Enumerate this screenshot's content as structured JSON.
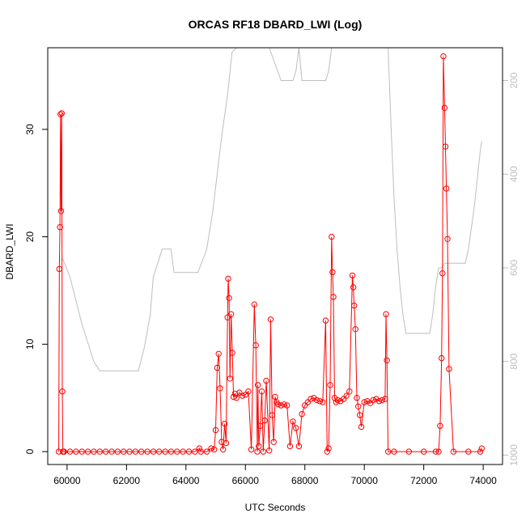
{
  "chart_data": {
    "type": "line",
    "title": "ORCAS RF18 DBARD_LWI (Log)",
    "xlabel": "UTC Seconds",
    "ylabel": "DBARD_LWI",
    "xlim": [
      59350,
      74650
    ],
    "ylim": [
      -1.2,
      37.6
    ],
    "x_ticks": [
      60000,
      62000,
      64000,
      66000,
      68000,
      70000,
      72000,
      74000
    ],
    "y_ticks": [
      0,
      10,
      20,
      30
    ],
    "y2_ticks": [
      200,
      400,
      600,
      800,
      1000
    ],
    "y2_reversed": true,
    "y2_lim": [
      1020,
      130
    ],
    "grid": false,
    "series": [
      {
        "role": "DBARD_LWI",
        "color": "#ff0000",
        "marker": "open-circle",
        "x": [
          59720,
          59740,
          59760,
          59780,
          59800,
          59820,
          59840,
          59860,
          59880,
          59900,
          60100,
          60300,
          60500,
          60700,
          60900,
          61100,
          61300,
          61500,
          61700,
          61900,
          62100,
          62300,
          62500,
          62700,
          62900,
          63100,
          63300,
          63500,
          63700,
          63900,
          64100,
          64300,
          64450,
          64500,
          64700,
          64850,
          64950,
          65000,
          65050,
          65100,
          65150,
          65200,
          65250,
          65300,
          65350,
          65400,
          65420,
          65450,
          65480,
          65520,
          65560,
          65600,
          65650,
          65700,
          65800,
          65900,
          66000,
          66100,
          66200,
          66300,
          66350,
          66400,
          66420,
          66450,
          66500,
          66550,
          66600,
          66650,
          66700,
          66800,
          66850,
          66900,
          66950,
          67000,
          67050,
          67100,
          67200,
          67300,
          67400,
          67500,
          67600,
          67700,
          67800,
          67900,
          68000,
          68100,
          68200,
          68300,
          68400,
          68500,
          68600,
          68700,
          68750,
          68800,
          68850,
          68900,
          68930,
          68960,
          69000,
          69050,
          69100,
          69200,
          69300,
          69400,
          69500,
          69600,
          69630,
          69660,
          69700,
          69750,
          69800,
          69850,
          69900,
          70000,
          70100,
          70200,
          70300,
          70400,
          70500,
          70600,
          70700,
          70730,
          70760,
          70800,
          71000,
          71500,
          72000,
          72400,
          72500,
          72550,
          72600,
          72630,
          72660,
          72700,
          72730,
          72760,
          72800,
          72850,
          73000,
          73500,
          73900,
          73950
        ],
        "values": [
          0,
          17.0,
          20.9,
          31.4,
          22.4,
          31.5,
          5.6,
          0,
          0,
          0,
          0,
          0,
          0,
          0,
          0,
          0,
          0,
          0,
          0,
          0,
          0,
          0,
          0,
          0,
          0,
          0,
          0,
          0,
          0,
          0,
          0,
          0,
          0.3,
          0,
          0,
          0.3,
          0.2,
          2.0,
          7.8,
          9.1,
          5.9,
          0.9,
          0.2,
          2.6,
          0.8,
          12.5,
          16.1,
          14.3,
          6.8,
          12.8,
          9.2,
          5.1,
          5.4,
          5.0,
          5.5,
          5.2,
          5.3,
          5.6,
          0.2,
          13.7,
          9.9,
          0,
          6.2,
          0.5,
          2.4,
          5.6,
          0,
          2.9,
          6.6,
          0.1,
          12.3,
          3.4,
          0.9,
          5.1,
          4.6,
          4.4,
          4.3,
          4.4,
          4.3,
          0.5,
          2.8,
          2.2,
          0.5,
          3.5,
          4.3,
          4.6,
          4.9,
          5.0,
          4.8,
          4.7,
          4.6,
          12.2,
          0,
          0.3,
          6.2,
          20.0,
          16.7,
          14.4,
          5.0,
          4.6,
          4.8,
          4.7,
          4.9,
          5.2,
          5.6,
          16.4,
          15.3,
          13.6,
          11.4,
          5.0,
          4.2,
          3.4,
          2.3,
          4.6,
          4.7,
          4.5,
          4.8,
          4.9,
          4.7,
          4.8,
          4.9,
          12.8,
          8.5,
          0,
          0,
          0,
          0,
          0,
          0,
          2.4,
          8.7,
          16.6,
          36.8,
          32.0,
          28.4,
          24.5,
          19.8,
          7.7,
          0,
          0,
          0,
          0.3
        ]
      },
      {
        "role": "altitude",
        "color": "#bebebe",
        "axis": "right",
        "x": [
          59850,
          60100,
          60300,
          60500,
          60700,
          60900,
          61100,
          61300,
          61600,
          62000,
          62250,
          62400,
          62600,
          62800,
          62900,
          63200,
          63300,
          63500,
          63600,
          63900,
          64000,
          64400,
          64700,
          64900,
          65050,
          65200,
          65400,
          65550,
          65700,
          65800,
          66400,
          66600,
          66700,
          66800,
          67200,
          67600,
          67700,
          67800,
          67900,
          68200,
          68600,
          68700,
          68800,
          68900,
          69000,
          69500,
          69700,
          69800,
          70000,
          70400,
          70600,
          70800,
          70900,
          71000,
          71100,
          71200,
          71300,
          71400,
          71500,
          71600,
          71700,
          71800,
          71900,
          72000,
          72100,
          72200,
          72300,
          72400,
          72500,
          72600,
          72700,
          72800,
          72900,
          73000,
          73100,
          73200,
          73300,
          73400,
          73500,
          73700,
          73900,
          73950
        ],
        "values": [
          580,
          620,
          670,
          720,
          760,
          800,
          820,
          820,
          820,
          820,
          820,
          820,
          770,
          700,
          620,
          560,
          560,
          560,
          610,
          610,
          610,
          610,
          560,
          480,
          400,
          320,
          230,
          140,
          130,
          130,
          130,
          130,
          130,
          130,
          200,
          200,
          180,
          130,
          200,
          200,
          200,
          200,
          180,
          130,
          130,
          130,
          130,
          130,
          130,
          130,
          130,
          130,
          300,
          450,
          560,
          640,
          700,
          740,
          740,
          740,
          740,
          740,
          740,
          740,
          740,
          740,
          700,
          640,
          600,
          600,
          590,
          590,
          590,
          590,
          590,
          590,
          590,
          590,
          560,
          470,
          350,
          330
        ]
      }
    ]
  }
}
